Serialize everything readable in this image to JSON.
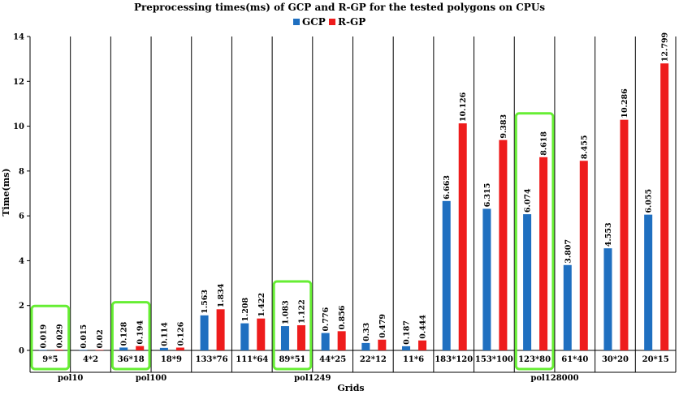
{
  "chart_data": {
    "type": "bar",
    "title": "Preprocessing times(ms) of GCP and R-GP for the tested polygons on CPUs",
    "xlabel": "Grids",
    "ylabel": "Time(ms)",
    "ylim": [
      0,
      14
    ],
    "yticks": [
      "0",
      "2",
      "4",
      "6",
      "8",
      "10",
      "12",
      "14"
    ],
    "legend_position": "top-center",
    "categories": [
      "9*5",
      "4*2",
      "36*18",
      "18*9",
      "133*76",
      "111*64",
      "89*51",
      "44*25",
      "22*12",
      "11*6",
      "183*120",
      "153*100",
      "123*80",
      "61*40",
      "30*20",
      "20*15"
    ],
    "groups": [
      {
        "label": "pol10",
        "count": 2
      },
      {
        "label": "pol100",
        "count": 2
      },
      {
        "label": "pol1249",
        "count": 6
      },
      {
        "label": "pol128000",
        "count": 6
      }
    ],
    "series": [
      {
        "name": "GCP",
        "color": "#1f6fc0",
        "values": [
          0.019,
          0.015,
          0.128,
          0.114,
          1.563,
          1.208,
          1.083,
          0.776,
          0.33,
          0.187,
          6.663,
          6.315,
          6.074,
          3.807,
          4.553,
          6.055
        ],
        "labels": [
          "0.019",
          "0.015",
          "0.128",
          "0.114",
          "1.563",
          "1.208",
          "1.083",
          "0.776",
          "0.33",
          "0.187",
          "6.663",
          "6.315",
          "6.074",
          "3.807",
          "4.553",
          "6.055"
        ]
      },
      {
        "name": "R-GP",
        "color": "#ee1c1c",
        "values": [
          0.029,
          0.02,
          0.194,
          0.126,
          1.834,
          1.422,
          1.122,
          0.856,
          0.479,
          0.444,
          10.126,
          9.383,
          8.618,
          8.455,
          10.286,
          12.799
        ],
        "labels": [
          "0.029",
          "0.02",
          "0.194",
          "0.126",
          "1.834",
          "1.422",
          "1.122",
          "0.856",
          "0.479",
          "0.444",
          "10.126",
          "9.383",
          "8.618",
          "8.455",
          "10.286",
          "12.799"
        ]
      }
    ],
    "highlighted_categories": [
      "9*5",
      "36*18",
      "89*51",
      "123*80"
    ],
    "highlight_color": "#66ee33",
    "grid": false
  }
}
